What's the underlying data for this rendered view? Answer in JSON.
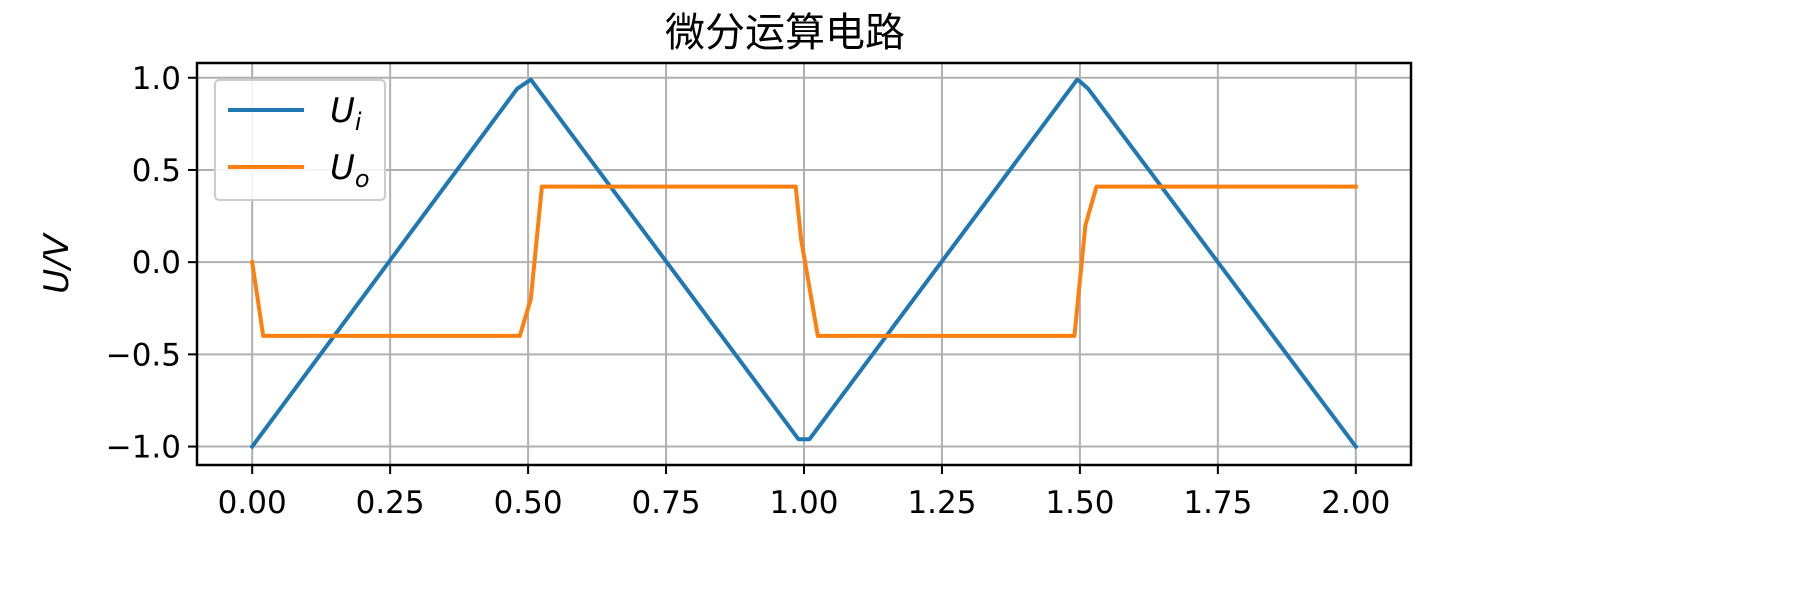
{
  "chart_data": {
    "type": "line",
    "title": "微分运算电路",
    "xlabel": "",
    "ylabel": "U/V",
    "xlim": [
      -0.1,
      2.1
    ],
    "ylim": [
      -1.1,
      1.08
    ],
    "x_ticks": [
      0.0,
      0.25,
      0.5,
      0.75,
      1.0,
      1.25,
      1.5,
      1.75,
      2.0
    ],
    "x_tick_labels": [
      "0.00",
      "0.25",
      "0.50",
      "0.75",
      "1.00",
      "1.25",
      "1.50",
      "1.75",
      "2.00"
    ],
    "y_ticks": [
      1.0,
      0.5,
      0.0,
      -0.5,
      -1.0
    ],
    "y_tick_labels": [
      "1.0",
      "0.5",
      "0.0",
      "−0.5",
      "−1.0"
    ],
    "grid": true,
    "legend_position": "top-left",
    "series": [
      {
        "name": "U",
        "name_sub": "i",
        "color": "#1f77b4",
        "x": [
          0.0,
          0.48,
          0.5,
          0.505,
          0.99,
          1.0,
          1.01,
          1.495,
          1.5,
          1.515,
          2.0
        ],
        "y": [
          -1.0,
          0.94,
          0.98,
          0.99,
          -0.96,
          -0.96,
          -0.96,
          0.99,
          0.98,
          0.94,
          -1.0
        ]
      },
      {
        "name": "U",
        "name_sub": "o",
        "color": "#ff7f0e",
        "x": [
          0.0,
          0.02,
          0.485,
          0.505,
          0.525,
          0.985,
          0.995,
          1.025,
          1.49,
          1.51,
          1.53,
          2.0
        ],
        "y": [
          0.0,
          -0.4,
          -0.4,
          -0.2,
          0.41,
          0.41,
          0.12,
          -0.4,
          -0.4,
          0.2,
          0.41,
          0.41
        ]
      }
    ]
  }
}
